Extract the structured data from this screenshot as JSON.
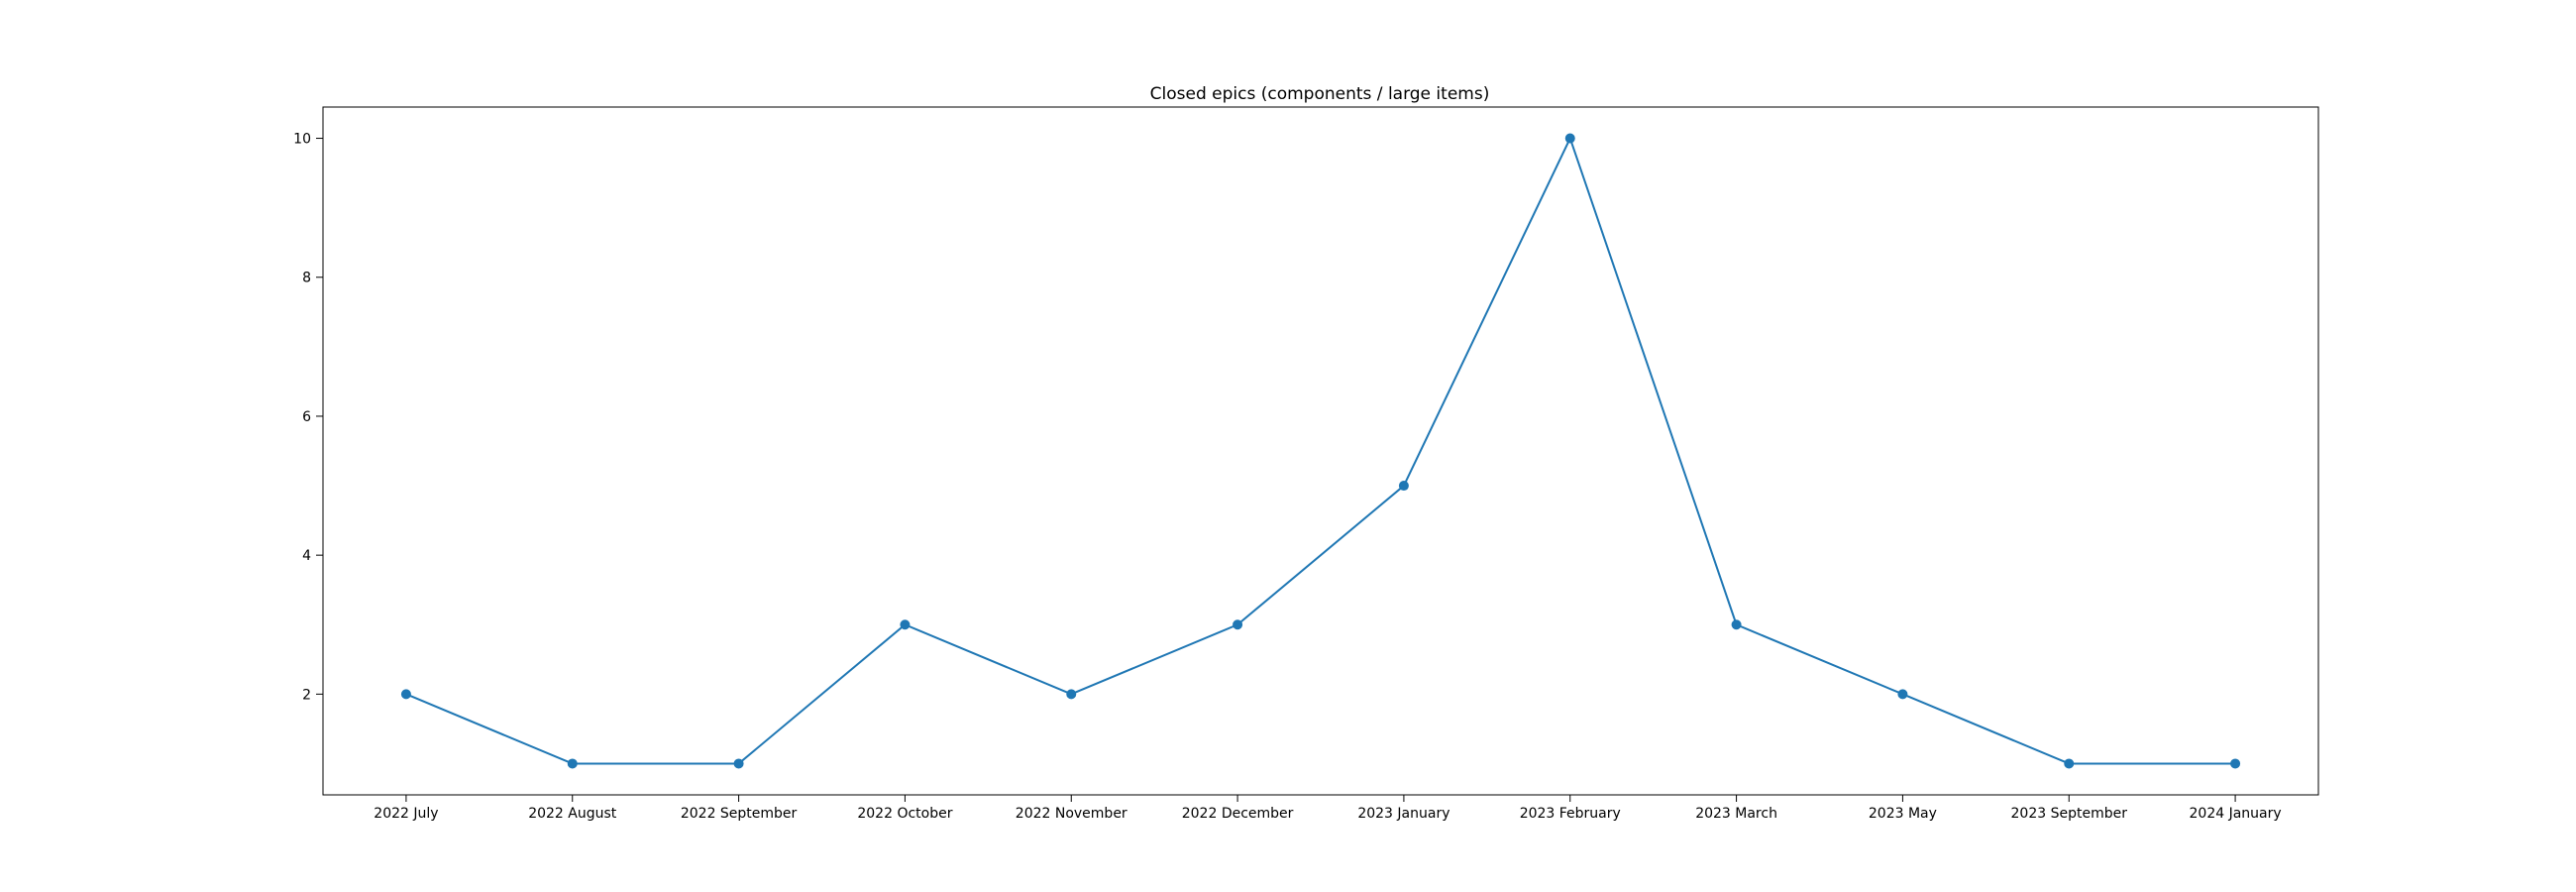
{
  "chart_data": {
    "type": "line",
    "title": "Closed epics (components / large items)",
    "xlabel": "",
    "ylabel": "",
    "categories": [
      "2022 July",
      "2022 August",
      "2022 September",
      "2022 October",
      "2022 November",
      "2022 December",
      "2023 January",
      "2023 February",
      "2023 March",
      "2023 May",
      "2023 September",
      "2024 January"
    ],
    "values": [
      2,
      1,
      1,
      3,
      2,
      3,
      5,
      10,
      3,
      2,
      1,
      1
    ],
    "ylim": [
      0.55,
      10.45
    ],
    "yticks": [
      2,
      4,
      6,
      8,
      10
    ],
    "grid": false,
    "legend": "none",
    "markers": true,
    "color": "#1f77b4"
  }
}
